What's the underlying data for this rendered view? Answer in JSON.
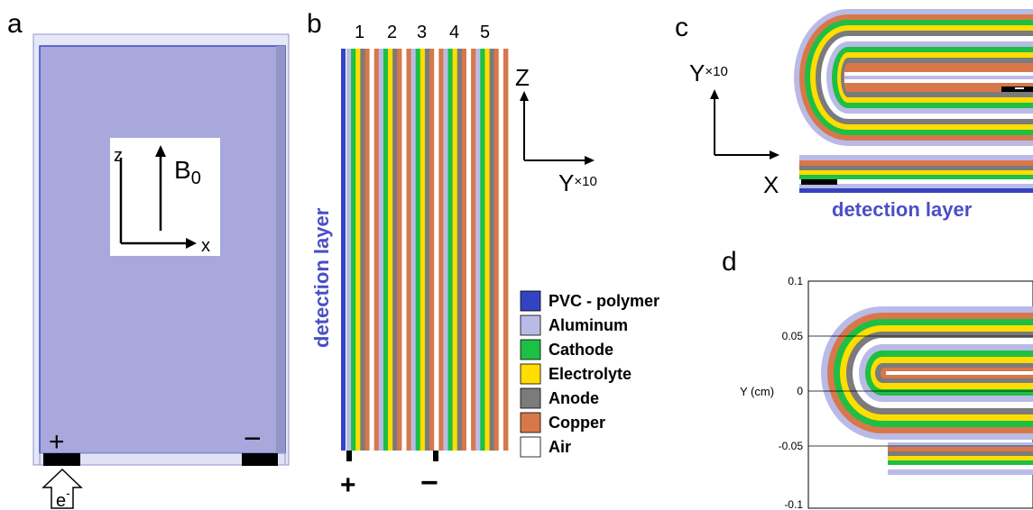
{
  "panels": {
    "a": "a",
    "b": "b",
    "c": "c",
    "d": "d"
  },
  "colors": {
    "pvc": "#3444c0",
    "aluminum": "#b9bbe6",
    "cathode": "#1dbf44",
    "electrolyte": "#ffdd00",
    "anode": "#7b7b7b",
    "copper": "#d8784a",
    "air": "#ffffff",
    "volume": "#a8a8dd",
    "volume_border": "#3d4bbf"
  },
  "panel_a": {
    "axis_z": "z",
    "axis_x": "x",
    "field": "B",
    "field_sub": "0",
    "plus": "+",
    "minus": "−",
    "electron": "e",
    "electron_sup": "-"
  },
  "panel_b": {
    "cell_numbers": [
      "1",
      "2",
      "3",
      "4",
      "5"
    ],
    "detection_label": "detection layer",
    "plus": "+",
    "minus": "−",
    "axis_z": "Z",
    "axis_y": "Y",
    "axis_scale": "×10"
  },
  "panel_c": {
    "axis_y": "Y",
    "axis_scale": "×10",
    "axis_x": "X",
    "detection_label": "detection layer"
  },
  "legend": [
    {
      "label": "PVC - polymer",
      "color": "#3444c0"
    },
    {
      "label": "Aluminum",
      "color": "#b9bbe6"
    },
    {
      "label": "Cathode",
      "color": "#1dbf44"
    },
    {
      "label": "Electrolyte",
      "color": "#ffdd00"
    },
    {
      "label": "Anode",
      "color": "#7b7b7b"
    },
    {
      "label": "Copper",
      "color": "#d8784a"
    },
    {
      "label": "Air",
      "color": "#ffffff"
    }
  ],
  "panel_d": {
    "ylabel": "Y (cm)",
    "yticks": [
      "0.1",
      "0.05",
      "0",
      "-0.05",
      "-0.1"
    ]
  }
}
